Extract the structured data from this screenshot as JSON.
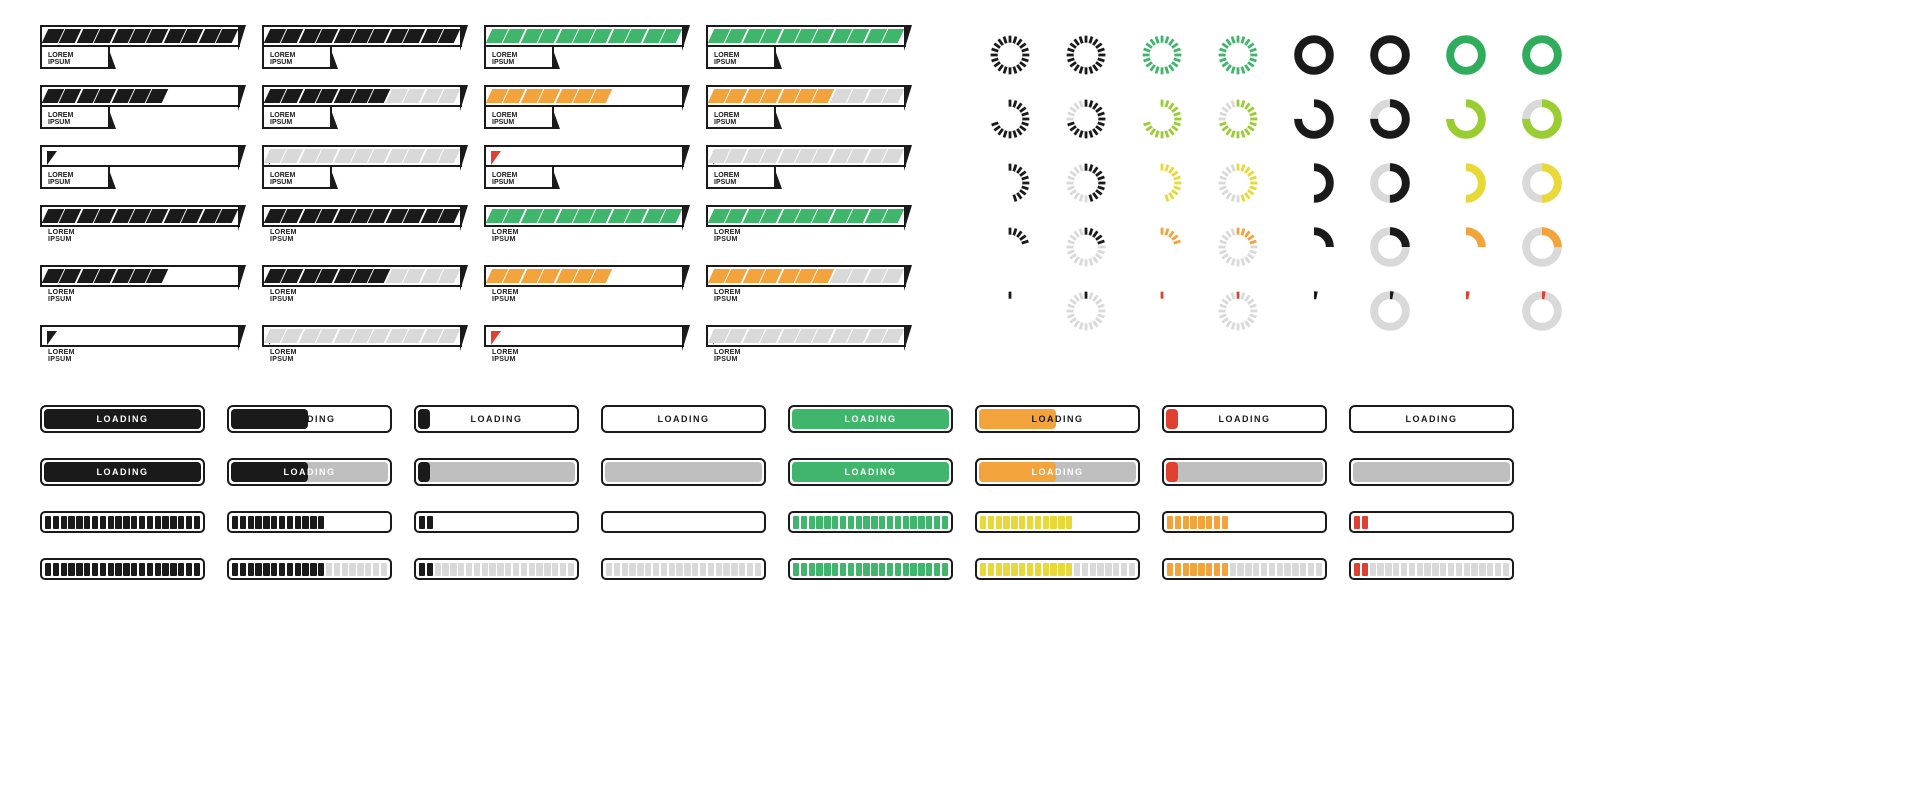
{
  "label_text_line1": "LOREM",
  "label_text_line2": "IPSUM",
  "loading_text": "LOADING",
  "colors": {
    "black": "#1a1a1a",
    "white": "#ffffff",
    "gray": "#bfbfbf",
    "gray_light": "#d9d9d9",
    "green": "#3fb66b",
    "green_bright": "#2fad5c",
    "orange": "#f2a33c",
    "yellow": "#e8d838",
    "yellowgreen": "#9acd32",
    "red": "#e04030"
  },
  "futuristic_bars": {
    "segments": 11,
    "rows": [
      [
        {
          "style": "box",
          "fill_count": 11,
          "fill_color": "#1a1a1a",
          "empty_color": "transparent"
        },
        {
          "style": "box",
          "fill_count": 11,
          "fill_color": "#1a1a1a",
          "empty_color": "#d9d9d9"
        },
        {
          "style": "box",
          "fill_count": 11,
          "fill_color": "#3fb66b",
          "empty_color": "transparent"
        },
        {
          "style": "box",
          "fill_count": 11,
          "fill_color": "#3fb66b",
          "empty_color": "#d9d9d9"
        }
      ],
      [
        {
          "style": "box",
          "fill_count": 7,
          "fill_color": "#1a1a1a",
          "empty_color": "transparent"
        },
        {
          "style": "box",
          "fill_count": 7,
          "fill_color": "#1a1a1a",
          "empty_color": "#d9d9d9"
        },
        {
          "style": "box",
          "fill_count": 7,
          "fill_color": "#f2a33c",
          "empty_color": "transparent"
        },
        {
          "style": "box",
          "fill_count": 7,
          "fill_color": "#f2a33c",
          "empty_color": "#d9d9d9"
        }
      ],
      [
        {
          "style": "box",
          "fill_count": 0,
          "tri_color": "#1a1a1a",
          "empty_color": "transparent"
        },
        {
          "style": "box",
          "fill_count": 0,
          "tri_color": "#1a1a1a",
          "empty_color": "#d9d9d9"
        },
        {
          "style": "box",
          "fill_count": 0,
          "tri_color": "#e04030",
          "empty_color": "transparent"
        },
        {
          "style": "box",
          "fill_count": 0,
          "tri_color": "#e04030",
          "empty_color": "#d9d9d9"
        }
      ],
      [
        {
          "style": "plain",
          "fill_count": 11,
          "fill_color": "#1a1a1a",
          "empty_color": "transparent"
        },
        {
          "style": "plain",
          "fill_count": 11,
          "fill_color": "#1a1a1a",
          "empty_color": "#d9d9d9"
        },
        {
          "style": "plain",
          "fill_count": 11,
          "fill_color": "#3fb66b",
          "empty_color": "transparent"
        },
        {
          "style": "plain",
          "fill_count": 11,
          "fill_color": "#3fb66b",
          "empty_color": "#d9d9d9"
        }
      ],
      [
        {
          "style": "plain",
          "fill_count": 7,
          "fill_color": "#1a1a1a",
          "empty_color": "transparent"
        },
        {
          "style": "plain",
          "fill_count": 7,
          "fill_color": "#1a1a1a",
          "empty_color": "#d9d9d9"
        },
        {
          "style": "plain",
          "fill_count": 7,
          "fill_color": "#f2a33c",
          "empty_color": "transparent"
        },
        {
          "style": "plain",
          "fill_count": 7,
          "fill_color": "#f2a33c",
          "empty_color": "#d9d9d9"
        }
      ],
      [
        {
          "style": "plain",
          "fill_count": 0,
          "tri_color": "#1a1a1a",
          "empty_color": "transparent"
        },
        {
          "style": "plain",
          "fill_count": 0,
          "tri_color": "#1a1a1a",
          "empty_color": "#d9d9d9"
        },
        {
          "style": "plain",
          "fill_count": 0,
          "tri_color": "#e04030",
          "empty_color": "transparent"
        },
        {
          "style": "plain",
          "fill_count": 0,
          "tri_color": "#e04030",
          "empty_color": "#d9d9d9"
        }
      ]
    ]
  },
  "circular_spinners": {
    "rows": [
      {
        "pct": 100,
        "colors": [
          "#1a1a1a",
          "#1a1a1a",
          "#3fb66b",
          "#3fb66b",
          "#1a1a1a",
          "#1a1a1a",
          "#2fad5c",
          "#2fad5c"
        ]
      },
      {
        "pct": 75,
        "colors": [
          "#1a1a1a",
          "#1a1a1a",
          "#9acd32",
          "#9acd32",
          "#1a1a1a",
          "#1a1a1a",
          "#9acd32",
          "#9acd32"
        ]
      },
      {
        "pct": 50,
        "colors": [
          "#1a1a1a",
          "#1a1a1a",
          "#e8d838",
          "#e8d838",
          "#1a1a1a",
          "#1a1a1a",
          "#e8d838",
          "#e8d838"
        ]
      },
      {
        "pct": 25,
        "colors": [
          "#1a1a1a",
          "#1a1a1a",
          "#f2a33c",
          "#f2a33c",
          "#1a1a1a",
          "#1a1a1a",
          "#f2a33c",
          "#f2a33c"
        ]
      },
      {
        "pct": 3,
        "colors": [
          "#1a1a1a",
          "#1a1a1a",
          "#e04030",
          "#e04030",
          "#1a1a1a",
          "#1a1a1a",
          "#e04030",
          "#e04030"
        ]
      }
    ],
    "col_variants": [
      "dash-plain",
      "dash-track",
      "dash-plain",
      "dash-track",
      "ring-plain",
      "ring-track",
      "ring-plain",
      "ring-track"
    ],
    "dash_count": 20,
    "ring_width": 9,
    "dash_size": 44,
    "ring_size": 44
  },
  "loading_bars_row1": [
    {
      "fill_pct": 100,
      "fill_color": "#1a1a1a",
      "txt_color": "white"
    },
    {
      "fill_pct": 50,
      "fill_color": "#1a1a1a",
      "txt_color": "black"
    },
    {
      "fill_pct": 10,
      "fill_color": "#1a1a1a",
      "txt_color": "black"
    },
    {
      "fill_pct": 0,
      "fill_color": "#1a1a1a",
      "txt_color": "black"
    },
    {
      "fill_pct": 100,
      "fill_color": "#3fb66b",
      "txt_color": "white"
    },
    {
      "fill_pct": 50,
      "fill_color": "#f2a33c",
      "txt_color": "black"
    },
    {
      "fill_pct": 10,
      "fill_color": "#e04030",
      "txt_color": "black"
    },
    {
      "fill_pct": 0,
      "fill_color": "#1a1a1a",
      "txt_color": "black"
    }
  ],
  "loading_bars_row2": [
    {
      "fill_pct": 100,
      "fill_color": "#1a1a1a",
      "bg": "#bfbfbf",
      "txt_color": "white"
    },
    {
      "fill_pct": 50,
      "fill_color": "#1a1a1a",
      "bg": "#bfbfbf",
      "txt_color": "white"
    },
    {
      "fill_pct": 10,
      "fill_color": "#1a1a1a",
      "bg": "#bfbfbf",
      "txt_color": "gray"
    },
    {
      "fill_pct": 0,
      "fill_color": "#1a1a1a",
      "bg": "#bfbfbf",
      "txt_color": "gray"
    },
    {
      "fill_pct": 100,
      "fill_color": "#3fb66b",
      "bg": "#bfbfbf",
      "txt_color": "white"
    },
    {
      "fill_pct": 50,
      "fill_color": "#f2a33c",
      "bg": "#bfbfbf",
      "txt_color": "white"
    },
    {
      "fill_pct": 10,
      "fill_color": "#e04030",
      "bg": "#bfbfbf",
      "txt_color": "gray"
    },
    {
      "fill_pct": 0,
      "fill_color": "#1a1a1a",
      "bg": "#bfbfbf",
      "txt_color": "gray"
    }
  ],
  "block_bars": {
    "segments": 20,
    "row3": [
      {
        "fill_count": 20,
        "fill_color": "#1a1a1a",
        "empty": "transparent"
      },
      {
        "fill_count": 12,
        "fill_color": "#1a1a1a",
        "empty": "transparent"
      },
      {
        "fill_count": 2,
        "fill_color": "#1a1a1a",
        "empty": "transparent"
      },
      {
        "fill_count": 0,
        "fill_color": "#1a1a1a",
        "empty": "transparent"
      },
      {
        "fill_count": 20,
        "fill_color": "#3fb66b",
        "empty": "transparent"
      },
      {
        "fill_count": 12,
        "fill_color": "#e8d838",
        "empty": "transparent"
      },
      {
        "fill_count": 8,
        "fill_color": "#f2a33c",
        "empty": "transparent"
      },
      {
        "fill_count": 2,
        "fill_color": "#e04030",
        "empty": "transparent"
      }
    ],
    "row4": [
      {
        "fill_count": 20,
        "fill_color": "#1a1a1a",
        "empty": "#d9d9d9"
      },
      {
        "fill_count": 12,
        "fill_color": "#1a1a1a",
        "empty": "#d9d9d9"
      },
      {
        "fill_count": 2,
        "fill_color": "#1a1a1a",
        "empty": "#d9d9d9"
      },
      {
        "fill_count": 0,
        "fill_color": "#1a1a1a",
        "empty": "#d9d9d9"
      },
      {
        "fill_count": 20,
        "fill_color": "#3fb66b",
        "empty": "#d9d9d9"
      },
      {
        "fill_count": 12,
        "fill_color": "#e8d838",
        "empty": "#d9d9d9"
      },
      {
        "fill_count": 8,
        "fill_color": "#f2a33c",
        "empty": "#d9d9d9"
      },
      {
        "fill_count": 2,
        "fill_color": "#e04030",
        "empty": "#d9d9d9"
      }
    ]
  }
}
